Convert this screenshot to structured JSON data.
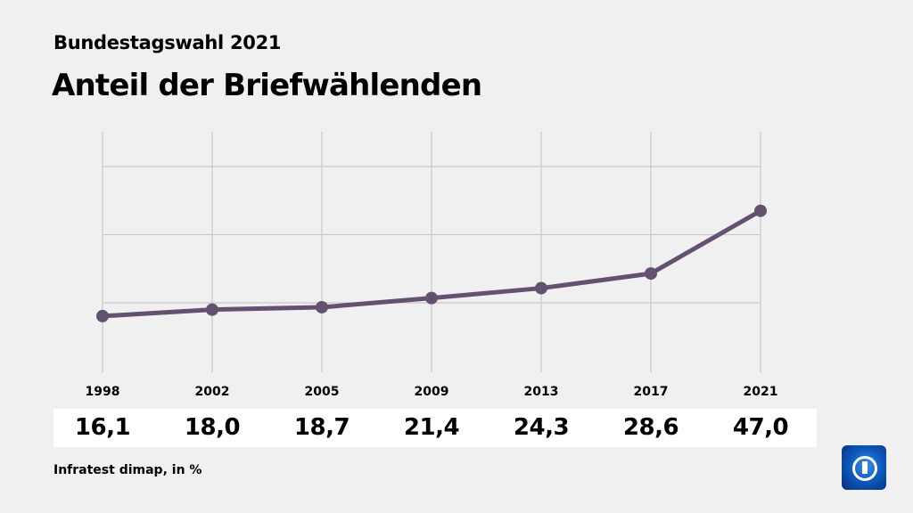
{
  "header": {
    "subtitle": "Bundestagswahl 2021",
    "title": "Anteil der Briefwählenden"
  },
  "source": "Infratest dimap, in %",
  "colors": {
    "line": "#64506f",
    "grid": "#c8c8c8",
    "background": "#f0f0f0"
  },
  "logo": "tagesschau-logo",
  "chart_data": {
    "type": "line",
    "categories": [
      "1998",
      "2002",
      "2005",
      "2009",
      "2013",
      "2017",
      "2021"
    ],
    "values": [
      16.1,
      18.0,
      18.7,
      21.4,
      24.3,
      28.6,
      47.0
    ],
    "value_labels": [
      "16,1",
      "18,0",
      "18,7",
      "21,4",
      "24,3",
      "28,6",
      "47,0"
    ],
    "ylim": [
      0,
      70
    ],
    "y_gridlines": [
      20,
      40,
      60
    ],
    "grid": true,
    "legend": "none"
  }
}
